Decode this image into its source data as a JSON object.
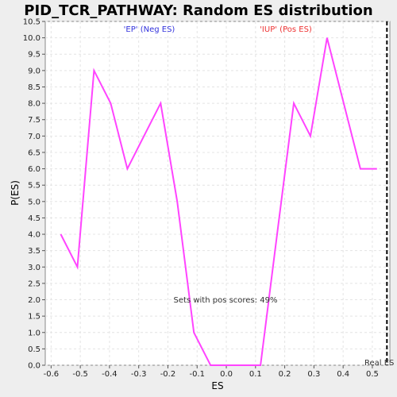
{
  "chart_data": {
    "type": "line",
    "title": "PID_TCR_PATHWAY: Random ES distribution",
    "xlabel": "ES",
    "ylabel": "P(ES)",
    "xlim": [
      -0.62,
      0.56
    ],
    "ylim": [
      0,
      10.5
    ],
    "x_ticks": [
      "-0.6",
      "-0.5",
      "-0.4",
      "-0.3",
      "-0.2",
      "-0.1",
      "0.0",
      "0.1",
      "0.2",
      "0.3",
      "0.4",
      "0.5"
    ],
    "y_ticks": [
      "0.0",
      "0.5",
      "1.0",
      "1.5",
      "2.0",
      "2.5",
      "3.0",
      "3.5",
      "4.0",
      "4.5",
      "5.0",
      "5.5",
      "6.0",
      "6.5",
      "7.0",
      "7.5",
      "8.0",
      "8.5",
      "9.0",
      "9.5",
      "10.0",
      "10.5"
    ],
    "grid": true,
    "series": [
      {
        "color": "#ff44ff",
        "x": [
          -0.567,
          -0.51,
          -0.453,
          -0.396,
          -0.339,
          -0.282,
          -0.225,
          -0.168,
          -0.111,
          -0.054,
          0.003,
          0.06,
          0.117,
          0.174,
          0.231,
          0.288,
          0.345,
          0.402,
          0.459,
          0.516
        ],
        "y": [
          4,
          3,
          9,
          8,
          6,
          7,
          8,
          5,
          1,
          0,
          0,
          0,
          0,
          4,
          8,
          7,
          10,
          8,
          6,
          6
        ]
      }
    ],
    "real_es": 0.55,
    "annotations": {
      "neg_label": "'EP' (Neg ES)",
      "neg_color": "#3333dd",
      "pos_label": "'IUP' (Pos ES)",
      "pos_color": "#ee3333",
      "pos_scores": "Sets with pos scores: 49%",
      "real_es_label": "Real ES"
    }
  }
}
